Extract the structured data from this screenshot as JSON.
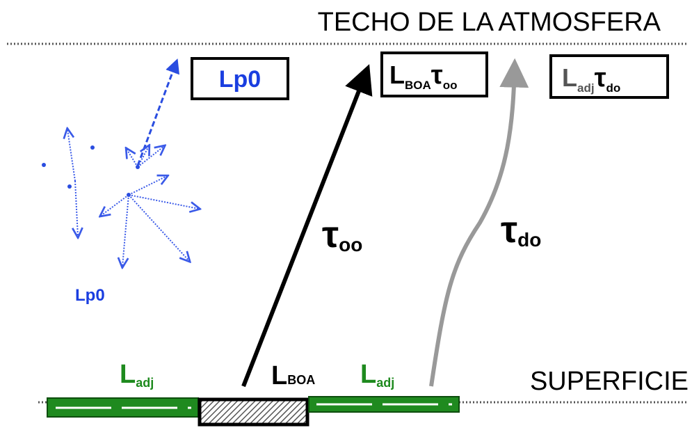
{
  "top_label": "TECHO DE LA ATMOSFERA",
  "bottom_label": "SUPERFICIE",
  "boxes": [
    {
      "main": "Lp0"
    },
    {
      "main": "L",
      "sub": "BOA",
      "tau": "τ",
      "tau_sub": "oo"
    },
    {
      "main": "L",
      "sub": "adj",
      "tau": "τ",
      "tau_sub": "do"
    }
  ],
  "path_labels": [
    {
      "tau": "τ",
      "sub": "oo"
    },
    {
      "tau": "τ",
      "sub": "do"
    }
  ],
  "scatter_label": "Lp0",
  "surface_labels": [
    {
      "main": "L",
      "sub": "adj"
    },
    {
      "main": "L",
      "sub": "BOA"
    },
    {
      "main": "L",
      "sub": "adj"
    }
  ]
}
